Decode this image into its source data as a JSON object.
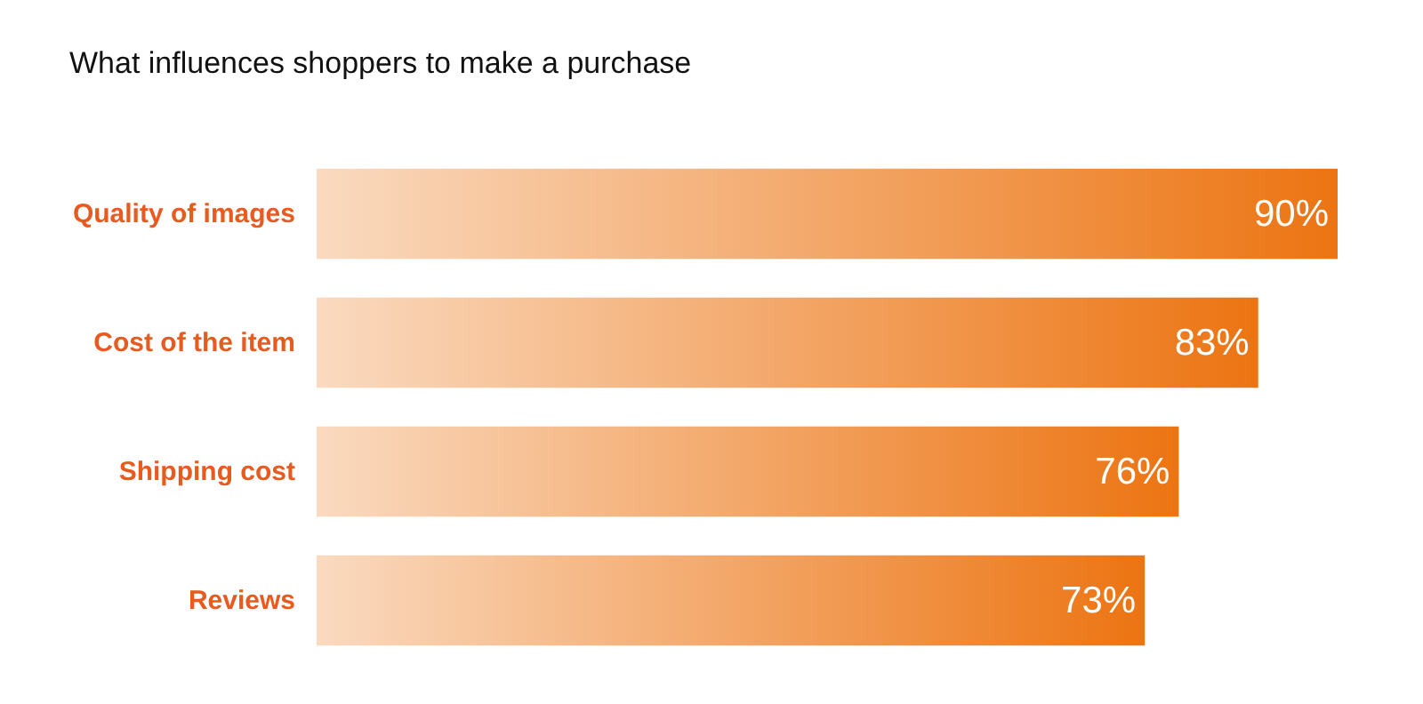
{
  "chart_data": {
    "type": "bar",
    "orientation": "horizontal",
    "title": "What influences shoppers to make a purchase",
    "categories": [
      "Quality of images",
      "Cost of the item",
      "Shipping cost",
      "Reviews"
    ],
    "values": [
      90,
      83,
      76,
      73
    ],
    "value_labels": [
      "90%",
      "83%",
      "76%",
      "73%"
    ],
    "color": "#ec7412"
  }
}
